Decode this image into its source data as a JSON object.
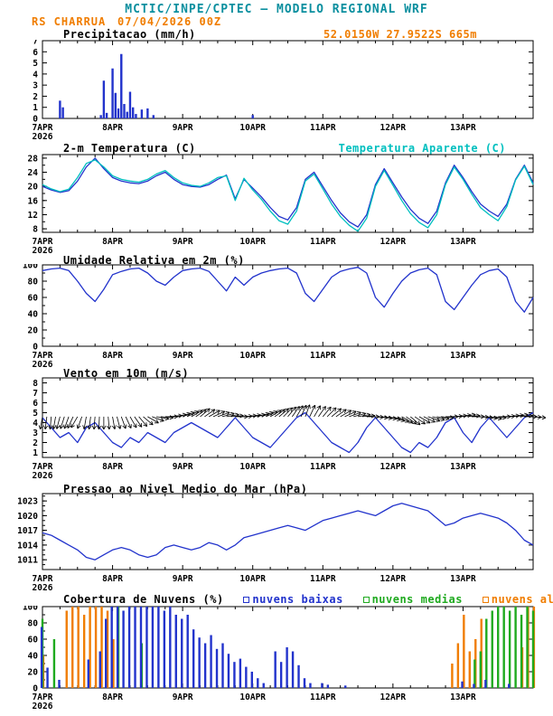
{
  "header": {
    "title": "MCTIC/INPE/CPTEC — MODELO REGIONAL WRF",
    "station": "RS CHARRUA",
    "run": "07/04/2026 00Z",
    "location": "52.0150W 27.9522S 665m"
  },
  "colors": {
    "teal": "#0a8f9f",
    "orange": "#f07d00",
    "blue": "#2233cc",
    "cyan": "#00bfbf",
    "green": "#1faa1f",
    "black": "#000000"
  },
  "x_axis": {
    "total_hours": 168,
    "minor_step": 6,
    "tick_hours": [
      0,
      24,
      48,
      72,
      96,
      120,
      144
    ],
    "tick_labels": [
      "7APR",
      "8APR",
      "9APR",
      "10APR",
      "11APR",
      "12APR",
      "13APR"
    ],
    "year": "2026"
  },
  "chart_data": [
    {
      "type": "bar",
      "title": "Precipitacao (mm/h)",
      "ylim": [
        0,
        7
      ],
      "yticks": [
        0,
        1,
        2,
        3,
        4,
        5,
        6,
        7
      ],
      "series": [
        {
          "name": "precipitacao",
          "color": "#2233cc",
          "points": [
            [
              6,
              1.6
            ],
            [
              7,
              1.0
            ],
            [
              20,
              0.3
            ],
            [
              21,
              3.4
            ],
            [
              22,
              0.5
            ],
            [
              24,
              4.5
            ],
            [
              25,
              2.3
            ],
            [
              26,
              0.9
            ],
            [
              27,
              5.8
            ],
            [
              28,
              1.3
            ],
            [
              29,
              0.6
            ],
            [
              30,
              2.4
            ],
            [
              31,
              1.0
            ],
            [
              32,
              0.4
            ],
            [
              34,
              0.8
            ],
            [
              36,
              0.9
            ],
            [
              38,
              0.3
            ],
            [
              72,
              0.3
            ]
          ]
        }
      ]
    },
    {
      "type": "line",
      "title": "2-m Temperatura (C)",
      "ylim": [
        7,
        29
      ],
      "yticks": [
        8,
        12,
        16,
        20,
        24,
        28
      ],
      "yminor": 2,
      "t_step": 3,
      "legend": [
        {
          "label": "Temperatura Aparente (C)",
          "color_key": "cyan"
        }
      ],
      "series": [
        {
          "name": "temperatura",
          "color": "#2233cc",
          "values": [
            20.0,
            19.0,
            18.3,
            18.8,
            21.5,
            25.5,
            28.0,
            25.0,
            22.5,
            21.5,
            21.0,
            20.8,
            21.5,
            23.0,
            24.0,
            22.0,
            20.5,
            20.0,
            19.8,
            20.5,
            22.0,
            23.2,
            16.5,
            22.0,
            19.5,
            17.0,
            14.0,
            11.5,
            10.5,
            14.0,
            22.0,
            24.0,
            20.0,
            16.0,
            12.5,
            10.0,
            8.5,
            12.0,
            20.5,
            25.0,
            21.0,
            17.0,
            13.5,
            11.0,
            9.5,
            13.0,
            21.0,
            26.0,
            22.5,
            18.5,
            15.0,
            13.0,
            11.5,
            15.0,
            22.0,
            26.0,
            21.0
          ]
        },
        {
          "name": "temperatura_aparente",
          "color": "#00bfbf",
          "values": [
            20.5,
            19.3,
            18.5,
            19.2,
            22.5,
            26.5,
            27.5,
            25.5,
            23.0,
            22.0,
            21.5,
            21.2,
            22.0,
            23.5,
            24.5,
            22.5,
            21.0,
            20.3,
            20.0,
            21.0,
            22.5,
            23.0,
            16.0,
            22.3,
            19.0,
            16.3,
            13.0,
            10.3,
            9.3,
            13.0,
            21.5,
            23.5,
            19.3,
            15.0,
            11.5,
            9.0,
            7.3,
            11.0,
            20.0,
            24.5,
            20.3,
            16.0,
            12.3,
            9.8,
            8.3,
            12.0,
            20.5,
            25.5,
            22.0,
            17.8,
            14.0,
            12.0,
            10.3,
            14.3,
            21.8,
            25.7,
            20.5
          ]
        }
      ]
    },
    {
      "type": "line",
      "title": "Umidade Relativa em 2m (%)",
      "ylim": [
        0,
        100
      ],
      "yticks": [
        0,
        20,
        40,
        60,
        80,
        100
      ],
      "yminor": 10,
      "t_step": 3,
      "series": [
        {
          "name": "umidade_relativa",
          "color": "#2233cc",
          "values": [
            93,
            95,
            96,
            93,
            80,
            65,
            55,
            70,
            88,
            92,
            95,
            96,
            90,
            80,
            75,
            85,
            93,
            95,
            96,
            92,
            80,
            68,
            85,
            75,
            85,
            90,
            93,
            95,
            96,
            90,
            65,
            55,
            70,
            85,
            92,
            95,
            97,
            90,
            60,
            48,
            65,
            80,
            90,
            94,
            96,
            88,
            55,
            45,
            60,
            75,
            88,
            93,
            95,
            85,
            55,
            42,
            60
          ]
        }
      ]
    },
    {
      "type": "line",
      "title": "Vento em 10m (m/s)",
      "ylim": [
        0.5,
        8.5
      ],
      "yticks": [
        1,
        2,
        3,
        4,
        5,
        6,
        7,
        8
      ],
      "t_step": 3,
      "series": [
        {
          "name": "velocidade_vento",
          "color": "#2233cc",
          "values": [
            4.5,
            3.5,
            2.5,
            3.0,
            2.0,
            3.5,
            4.0,
            3.0,
            2.0,
            1.5,
            2.5,
            2.0,
            3.0,
            2.5,
            2.0,
            3.0,
            3.5,
            4.0,
            3.5,
            3.0,
            2.5,
            3.5,
            4.5,
            3.5,
            2.5,
            2.0,
            1.5,
            2.5,
            3.5,
            4.5,
            5.0,
            4.0,
            3.0,
            2.0,
            1.5,
            1.0,
            2.0,
            3.5,
            4.5,
            3.5,
            2.5,
            1.5,
            1.0,
            2.0,
            1.5,
            2.5,
            4.0,
            4.5,
            3.0,
            2.0,
            3.5,
            4.5,
            3.5,
            2.5,
            3.5,
            4.5,
            5.0
          ]
        }
      ],
      "barbs": {
        "anchor": 4.6,
        "color": "#000000",
        "dirs_deg": [
          190,
          185,
          195,
          200,
          210,
          190,
          185,
          180,
          170,
          160,
          150,
          140,
          120,
          100,
          90,
          80,
          70,
          60,
          50,
          60,
          70,
          80,
          90,
          85,
          80,
          70,
          60,
          50,
          40,
          30,
          20,
          30,
          40,
          50,
          60,
          70,
          80,
          90,
          95,
          100,
          110,
          120,
          130,
          120,
          110,
          100,
          90,
          85,
          80,
          90,
          95,
          100,
          90,
          85,
          80,
          90,
          95
        ]
      }
    },
    {
      "type": "line",
      "title": "Pressao ao Nivel Medio do Mar (hPa)",
      "ylim": [
        1009,
        1024.5
      ],
      "yticks": [
        1011,
        1014,
        1017,
        1020,
        1023
      ],
      "yminor": 1,
      "t_step": 3,
      "series": [
        {
          "name": "pressao_nivel_mar",
          "color": "#2233cc",
          "values": [
            1016.5,
            1016.0,
            1015.0,
            1014.0,
            1013.0,
            1011.5,
            1011.0,
            1012.0,
            1013.0,
            1013.5,
            1013.0,
            1012.0,
            1011.5,
            1012.0,
            1013.5,
            1014.0,
            1013.5,
            1013.0,
            1013.5,
            1014.5,
            1014.0,
            1013.0,
            1014.0,
            1015.5,
            1016.0,
            1016.5,
            1017.0,
            1017.5,
            1018.0,
            1017.5,
            1017.0,
            1018.0,
            1019.0,
            1019.5,
            1020.0,
            1020.5,
            1021.0,
            1020.5,
            1020.0,
            1021.0,
            1022.0,
            1022.5,
            1022.0,
            1021.5,
            1021.0,
            1019.5,
            1018.0,
            1018.5,
            1019.5,
            1020.0,
            1020.5,
            1020.0,
            1019.5,
            1018.5,
            1017.0,
            1015.0,
            1014.0
          ]
        }
      ]
    },
    {
      "type": "bar",
      "title": "Cobertura de Nuvens (%)",
      "ylim": [
        0,
        100
      ],
      "yticks": [
        0,
        20,
        40,
        60,
        80,
        100
      ],
      "yminor": 10,
      "t_step": 2,
      "legend": [
        {
          "label": "nuvens baixas",
          "color_key": "blue"
        },
        {
          "label": "nuvens medias",
          "color_key": "green"
        },
        {
          "label": "nuvens altas",
          "color_key": "orange"
        }
      ],
      "series": [
        {
          "name": "nuvens_altas",
          "color": "#f07d00",
          "values": [
            40,
            0,
            0,
            0,
            95,
            100,
            100,
            90,
            100,
            100,
            100,
            95,
            60,
            0,
            0,
            0,
            0,
            0,
            0,
            0,
            0,
            0,
            0,
            0,
            0,
            0,
            0,
            0,
            0,
            0,
            0,
            0,
            0,
            0,
            0,
            0,
            0,
            0,
            0,
            0,
            0,
            0,
            0,
            0,
            0,
            0,
            0,
            0,
            0,
            0,
            0,
            0,
            0,
            0,
            0,
            0,
            0,
            0,
            0,
            0,
            0,
            0,
            0,
            0,
            0,
            0,
            0,
            0,
            0,
            0,
            30,
            55,
            90,
            45,
            60,
            85,
            0,
            0,
            0,
            0,
            0,
            0,
            50,
            100,
            100
          ]
        },
        {
          "name": "nuvens_medias",
          "color": "#1faa1f",
          "values": [
            85,
            0,
            60,
            0,
            0,
            0,
            0,
            0,
            0,
            0,
            0,
            0,
            0,
            100,
            0,
            0,
            0,
            55,
            0,
            0,
            0,
            0,
            0,
            0,
            0,
            0,
            0,
            0,
            0,
            0,
            0,
            0,
            0,
            0,
            0,
            0,
            0,
            0,
            0,
            0,
            0,
            0,
            0,
            0,
            0,
            0,
            0,
            0,
            0,
            0,
            0,
            0,
            0,
            0,
            0,
            0,
            0,
            0,
            0,
            0,
            0,
            0,
            0,
            0,
            0,
            0,
            0,
            0,
            0,
            0,
            0,
            0,
            0,
            0,
            35,
            45,
            85,
            95,
            100,
            100,
            95,
            100,
            90,
            100,
            95
          ]
        },
        {
          "name": "nuvens_baixas",
          "color": "#2233cc",
          "values": [
            75,
            25,
            0,
            10,
            0,
            0,
            0,
            0,
            35,
            0,
            45,
            85,
            100,
            100,
            95,
            100,
            100,
            100,
            100,
            100,
            100,
            95,
            100,
            90,
            85,
            90,
            72,
            62,
            55,
            65,
            48,
            55,
            42,
            32,
            36,
            26,
            20,
            12,
            6,
            0,
            45,
            32,
            50,
            45,
            28,
            12,
            6,
            0,
            6,
            4,
            0,
            0,
            3,
            0,
            0,
            0,
            0,
            0,
            0,
            0,
            0,
            0,
            0,
            0,
            0,
            0,
            0,
            0,
            0,
            0,
            0,
            0,
            8,
            0,
            5,
            0,
            10,
            0,
            0,
            0,
            5,
            0,
            0,
            0,
            0
          ]
        }
      ]
    }
  ]
}
